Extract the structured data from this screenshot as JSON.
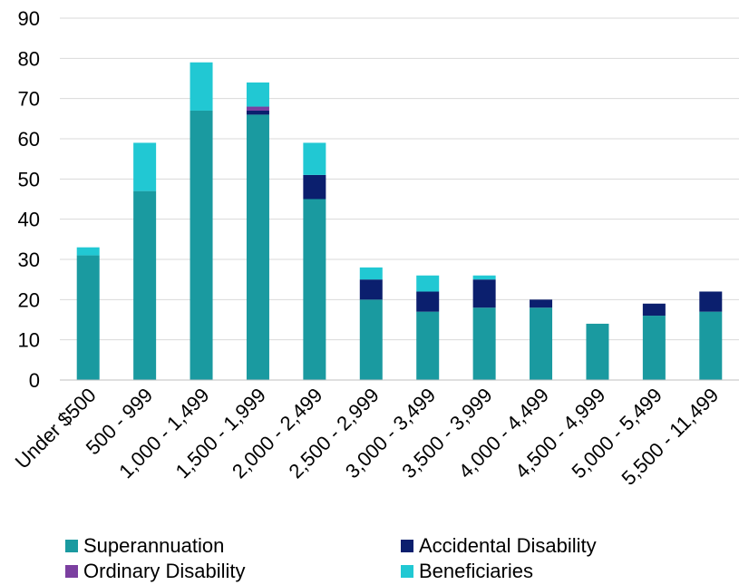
{
  "chart_data": {
    "type": "bar",
    "stacked": true,
    "categories": [
      "Under $500",
      "500 - 999",
      "1,000 - 1,499",
      "1,500 - 1,999",
      "2,000 - 2,499",
      "2,500 - 2,999",
      "3,000 - 3,499",
      "3,500 - 3,999",
      "4,000 - 4,499",
      "4,500 - 4,999",
      "5,000 - 5,499",
      "5,500 - 11,499"
    ],
    "series": [
      {
        "name": "Superannuation",
        "color": "#1a9aa0",
        "values": [
          31,
          47,
          67,
          66,
          45,
          20,
          17,
          18,
          18,
          14,
          16,
          17
        ]
      },
      {
        "name": "Accidental Disability",
        "color": "#0b1f6e",
        "values": [
          0,
          0,
          0,
          1,
          6,
          5,
          5,
          7,
          2,
          0,
          3,
          5
        ]
      },
      {
        "name": "Ordinary Disability",
        "color": "#7b3fa0",
        "values": [
          0,
          0,
          0,
          1,
          0,
          0,
          0,
          0,
          0,
          0,
          0,
          0
        ]
      },
      {
        "name": "Beneficiaries",
        "color": "#21c8d3",
        "values": [
          2,
          12,
          12,
          6,
          8,
          3,
          4,
          1,
          0,
          0,
          0,
          0
        ]
      }
    ],
    "yticks": [
      0,
      10,
      20,
      30,
      40,
      50,
      60,
      70,
      80,
      90
    ],
    "ylim": [
      0,
      90
    ],
    "grid": true,
    "legend_position": "bottom",
    "title": "",
    "xlabel": "",
    "ylabel": ""
  }
}
